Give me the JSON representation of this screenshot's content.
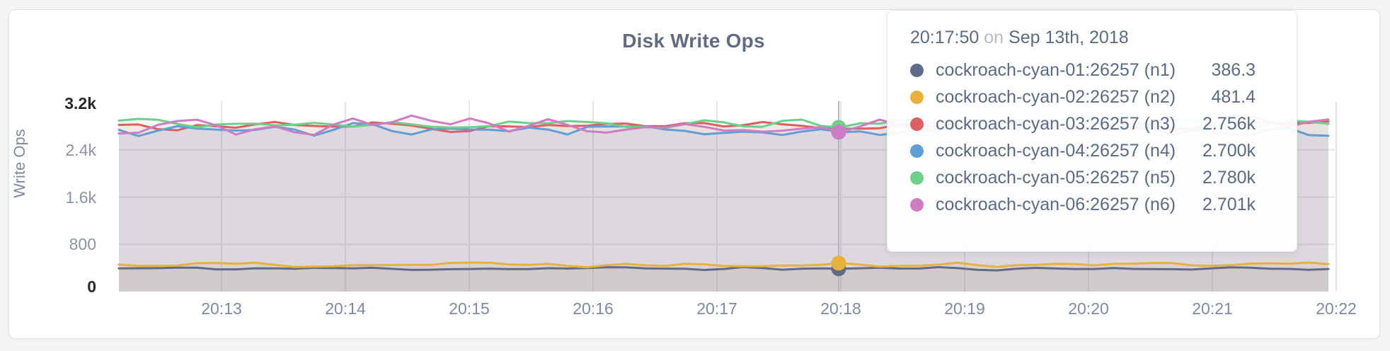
{
  "page": {
    "title": "Disk Write Ops"
  },
  "chart_data": {
    "type": "line",
    "title": "Disk Write Ops",
    "xlabel": "",
    "ylabel": "Write Ops",
    "ylim": [
      0,
      3200
    ],
    "y_ticks": [
      "0",
      "800",
      "1.6k",
      "2.4k",
      "3.2k"
    ],
    "x_ticks": [
      "20:13",
      "20:14",
      "20:15",
      "20:16",
      "20:17",
      "20:18",
      "20:19",
      "20:20",
      "20:21",
      "20:22"
    ],
    "grid": true,
    "point_interval_seconds": 10,
    "hover": {
      "time": "20:17:50",
      "on_word": "on",
      "date": "Sep 13th, 2018",
      "nearest_x_tick": "20:18"
    },
    "series": [
      {
        "name": "cockroach-cyan-01:26257 (n1)",
        "color": "#5f6c87",
        "value_at_cursor": 386.3,
        "value_display": "386.3",
        "approx_mean": 390,
        "approx_noise": 35,
        "seed": 11
      },
      {
        "name": "cockroach-cyan-02:26257 (n2)",
        "color": "#e6b23c",
        "value_at_cursor": 481.4,
        "value_display": "481.4",
        "approx_mean": 465,
        "approx_noise": 55,
        "seed": 22
      },
      {
        "name": "cockroach-cyan-03:26257 (n3)",
        "color": "#dd5f5f",
        "value_at_cursor": 2756,
        "value_display": "2.756k",
        "approx_mean": 2790,
        "approx_noise": 110,
        "seed": 33
      },
      {
        "name": "cockroach-cyan-04:26257 (n4)",
        "color": "#5f9fd6",
        "value_at_cursor": 2700,
        "value_display": "2.700k",
        "approx_mean": 2740,
        "approx_noise": 140,
        "seed": 44
      },
      {
        "name": "cockroach-cyan-05:26257 (n5)",
        "color": "#6ecf8b",
        "value_at_cursor": 2780,
        "value_display": "2.780k",
        "approx_mean": 2860,
        "approx_noise": 110,
        "seed": 55
      },
      {
        "name": "cockroach-cyan-06:26257 (n6)",
        "color": "#ce7cc4",
        "value_at_cursor": 2701,
        "value_display": "2.701k",
        "approx_mean": 2830,
        "approx_noise": 180,
        "seed": 66
      }
    ]
  }
}
